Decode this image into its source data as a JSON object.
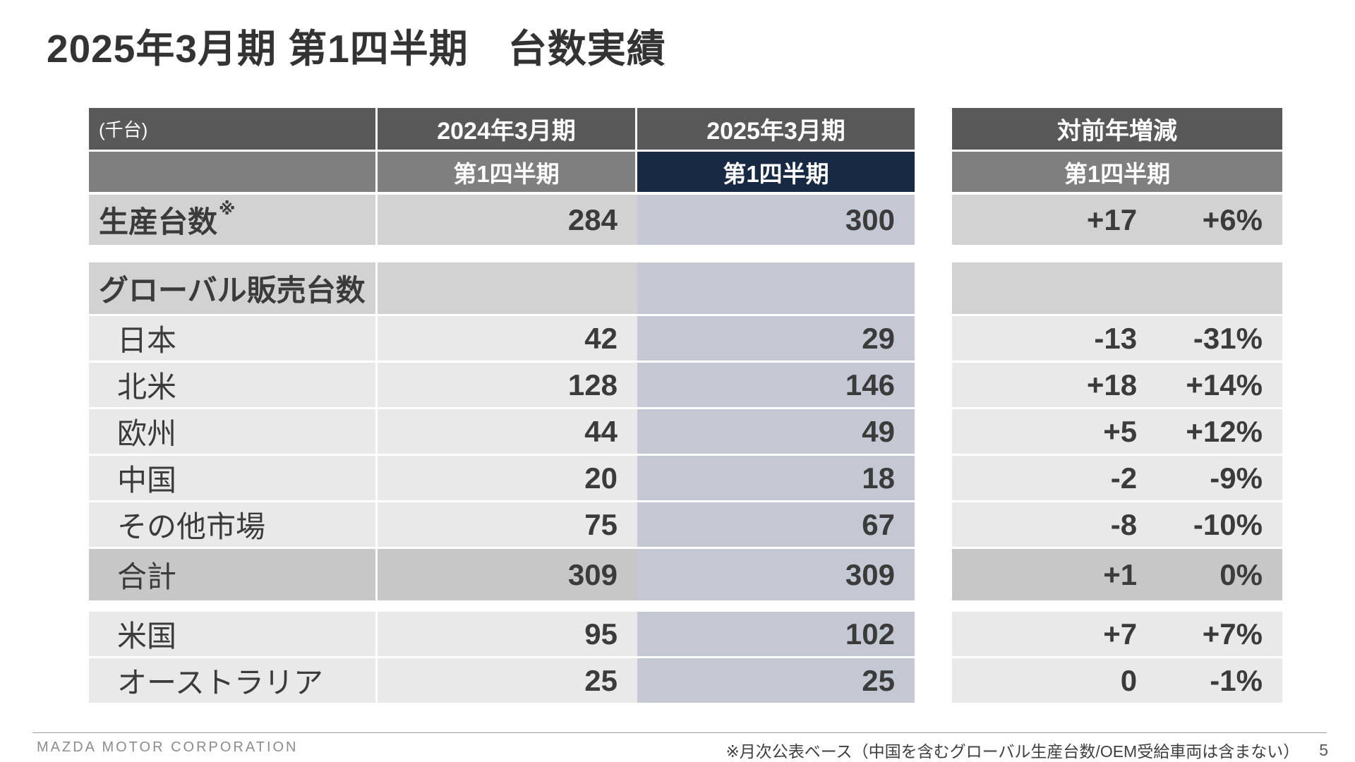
{
  "title": "2025年3月期 第1四半期　台数実績",
  "table": {
    "unit": "(千台)",
    "col_2024": "2024年3月期",
    "col_2025": "2025年3月期",
    "delta_col": "対前年増減",
    "quarter_2024": "第1四半期",
    "quarter_2025": "第1四半期",
    "quarter_delta": "第1四半期",
    "rows": [
      {
        "type": "prod",
        "label": "生産台数",
        "sup": "※",
        "v2024": "284",
        "v2025": "300",
        "delta": "+17",
        "pct": "+6%"
      },
      {
        "type": "section",
        "gap": "lg",
        "label": "グローバル販売台数",
        "v2024": "",
        "v2025": "",
        "delta": "",
        "pct": ""
      },
      {
        "type": "sub",
        "label": "日本",
        "v2024": "42",
        "v2025": "29",
        "delta": "-13",
        "pct": "-31%"
      },
      {
        "type": "sub",
        "label": "北米",
        "v2024": "128",
        "v2025": "146",
        "delta": "+18",
        "pct": "+14%"
      },
      {
        "type": "sub",
        "label": "欧州",
        "v2024": "44",
        "v2025": "49",
        "delta": "+5",
        "pct": "+12%"
      },
      {
        "type": "sub",
        "label": "中国",
        "v2024": "20",
        "v2025": "18",
        "delta": "-2",
        "pct": "-9%"
      },
      {
        "type": "sub",
        "label": "その他市場",
        "v2024": "75",
        "v2025": "67",
        "delta": "-8",
        "pct": "-10%"
      },
      {
        "type": "total",
        "label": "合計",
        "v2024": "309",
        "v2025": "309",
        "delta": "+1",
        "pct": "0%"
      },
      {
        "type": "sub",
        "gap": "md",
        "label": "米国",
        "v2024": "95",
        "v2025": "102",
        "delta": "+7",
        "pct": "+7%"
      },
      {
        "type": "sub",
        "label": "オーストラリア",
        "v2024": "25",
        "v2025": "25",
        "delta": "0",
        "pct": "-1%"
      }
    ]
  },
  "footer": {
    "company": "MAZDA MOTOR CORPORATION",
    "note": "※月次公表ベース（中国を含むグローバル生産台数/OEM受給車両は含まない）",
    "page": "5"
  },
  "colors": {
    "header-dark": "#595959",
    "header-mid": "#7f7f7f",
    "accent-navy": "#182a43",
    "row-strong": "#d2d2d2",
    "row-light": "#e9e9e9",
    "row-total": "#c7c7c7",
    "col-2025": "#c4c8d3",
    "text-dark": "#3b3b3b"
  }
}
